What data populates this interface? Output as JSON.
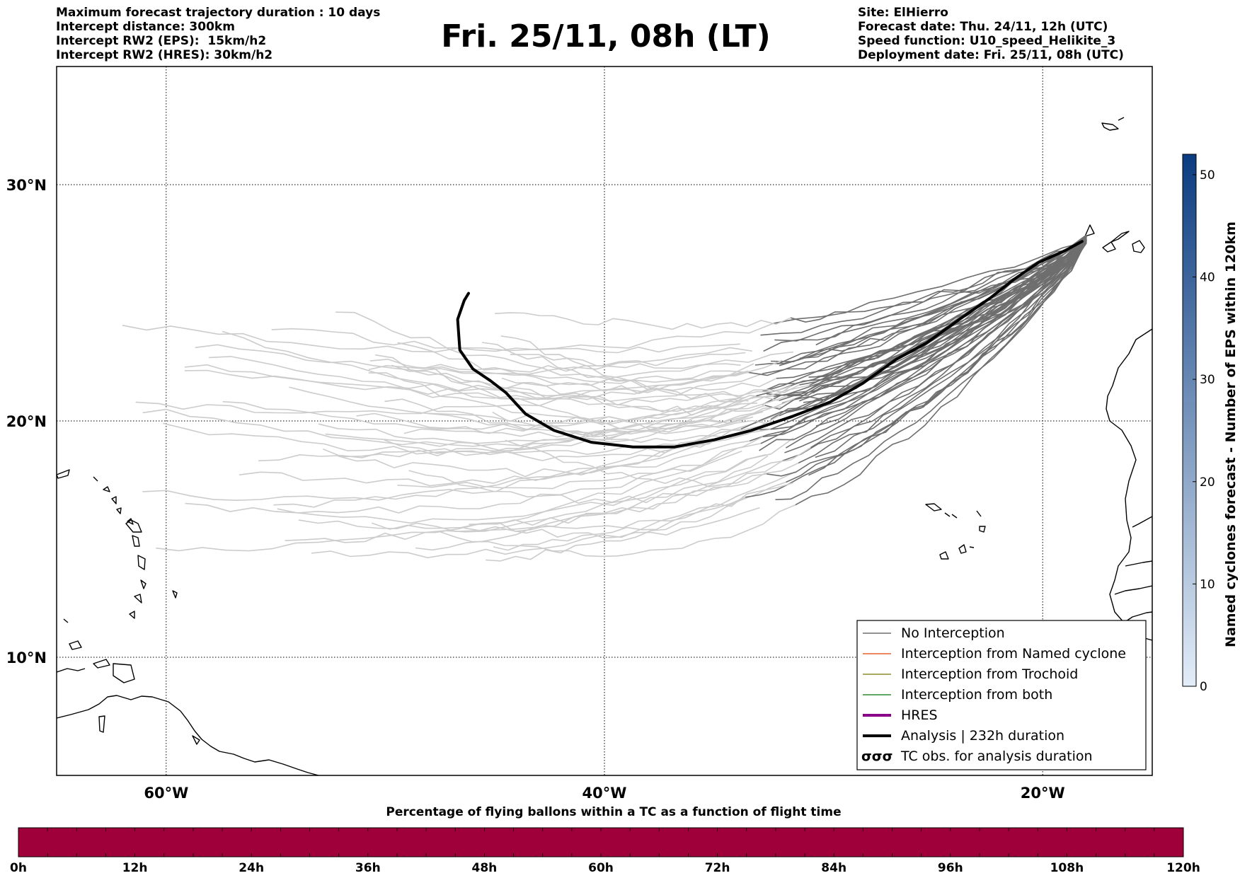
{
  "header": {
    "left_lines": [
      "Maximum forecast trajectory duration : 10 days",
      "Intercept distance: 300km",
      "Intercept RW2 (EPS):  15km/h2",
      "Intercept RW2 (HRES): 30km/h2"
    ],
    "title": "Fri. 25/11, 08h (LT)",
    "right_lines": [
      "Site: ElHierro",
      "Forecast date: Thu. 24/11, 12h (UTC)",
      "Speed function: U10_speed_Helikite_3",
      "Deployment date: Fri. 25/11, 08h (UTC)"
    ]
  },
  "map": {
    "lon_range": [
      -65,
      -15
    ],
    "lat_range": [
      5,
      35
    ],
    "lon_ticks": [
      {
        "value": -60,
        "label": "60°W"
      },
      {
        "value": -40,
        "label": "40°W"
      },
      {
        "value": -20,
        "label": "20°W"
      }
    ],
    "lat_ticks": [
      {
        "value": 30,
        "label": "30°N"
      },
      {
        "value": 20,
        "label": "20°N"
      },
      {
        "value": 10,
        "label": "10°N"
      }
    ],
    "grid": "dotted",
    "launch_site": {
      "name": "ElHierro",
      "lon": -18.0,
      "lat": 27.7
    }
  },
  "legend": {
    "placement": "bottom-right",
    "items": [
      {
        "key": "no_interception",
        "label": "No Interception",
        "color": "#6e6e6e"
      },
      {
        "key": "named_cyclone",
        "label": "Interception from Named cyclone",
        "color": "#e8602c"
      },
      {
        "key": "trochoid",
        "label": "Interception from Trochoid",
        "color": "#8b8b2a"
      },
      {
        "key": "both",
        "label": "Interception from both",
        "color": "#2e8b2e"
      },
      {
        "key": "hres",
        "label": "HRES",
        "color": "#8b008b"
      },
      {
        "key": "analysis",
        "label": "Analysis | 232h duration",
        "color": "#000000"
      },
      {
        "key": "tc_obs",
        "label": "TC obs. for analysis duration",
        "symbol": "σσσ"
      }
    ]
  },
  "analysis_track": [
    [
      -18.2,
      27.6
    ],
    [
      -19.0,
      27.2
    ],
    [
      -20.2,
      26.7
    ],
    [
      -21.3,
      26.0
    ],
    [
      -22.4,
      25.2
    ],
    [
      -23.8,
      24.3
    ],
    [
      -25.3,
      23.3
    ],
    [
      -26.7,
      22.6
    ],
    [
      -28.2,
      21.6
    ],
    [
      -29.7,
      20.8
    ],
    [
      -31.4,
      20.2
    ],
    [
      -33.3,
      19.6
    ],
    [
      -35.0,
      19.2
    ],
    [
      -36.8,
      18.9
    ],
    [
      -38.7,
      18.9
    ],
    [
      -40.6,
      19.1
    ],
    [
      -42.3,
      19.6
    ],
    [
      -43.6,
      20.3
    ],
    [
      -44.5,
      21.2
    ],
    [
      -45.2,
      21.7
    ],
    [
      -46.0,
      22.2
    ],
    [
      -46.6,
      23.0
    ],
    [
      -46.7,
      24.3
    ],
    [
      -46.4,
      25.1
    ],
    [
      -46.2,
      25.4
    ]
  ],
  "colorbar": {
    "label": "Named cyclones forecast - Number of EPS within 120km",
    "min": 0,
    "max": 52,
    "ticks": [
      0,
      10,
      20,
      30,
      40,
      50
    ],
    "color_low": "#e3edf8",
    "color_high": "#0b3c80"
  },
  "percentage_bar": {
    "caption": "Percentage of flying ballons within a TC as a function of flight time",
    "color": "#a0003a",
    "tick_labels": [
      "0h",
      "12h",
      "24h",
      "36h",
      "48h",
      "60h",
      "72h",
      "84h",
      "96h",
      "108h",
      "120h"
    ]
  }
}
